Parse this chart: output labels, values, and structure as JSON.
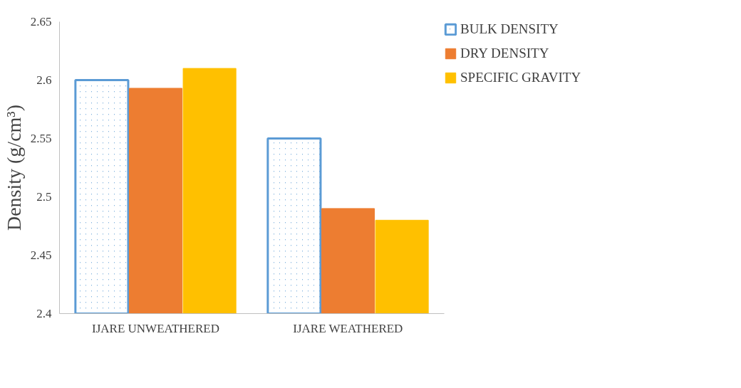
{
  "chart_data": {
    "type": "bar",
    "ylabel": "Density (g/cm³)",
    "categories": [
      "IJARE UNWEATHERED",
      "IJARE WEATHERED"
    ],
    "series": [
      {
        "name": "BULK DENSITY",
        "color": "#5b9bd5",
        "values": [
          2.6,
          2.55
        ]
      },
      {
        "name": "DRY DENSITY",
        "color": "#ed7d31",
        "values": [
          2.593,
          2.49
        ]
      },
      {
        "name": "SPECIFIC GRAVITY",
        "color": "#ffc000",
        "values": [
          2.61,
          2.48
        ]
      }
    ],
    "ylim": [
      2.4,
      2.65
    ],
    "yticks": [
      2.4,
      2.45,
      2.5,
      2.55,
      2.6,
      2.65
    ],
    "grid": false,
    "legend": "right"
  }
}
